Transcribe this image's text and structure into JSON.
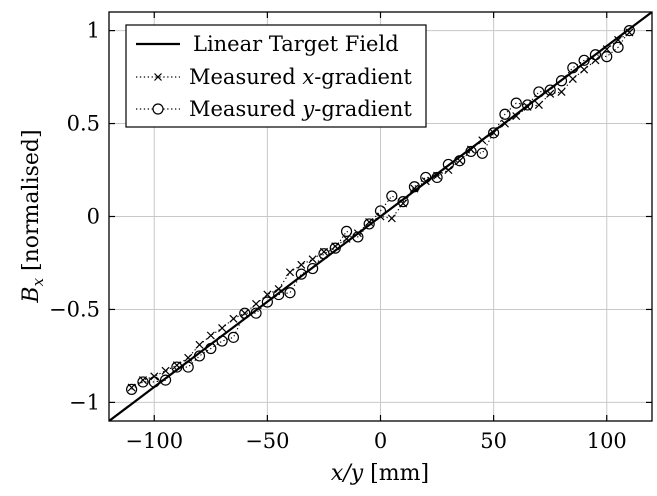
{
  "chart_data": {
    "type": "line",
    "xlabel": {
      "italic": "x/y",
      "plain": " [mm]"
    },
    "ylabel": {
      "italic": "B",
      "subscript": "x",
      "plain": " [normalised]"
    },
    "xlim": [
      -120,
      120
    ],
    "ylim": [
      -1.1,
      1.1
    ],
    "xticks": [
      -100,
      -50,
      0,
      50,
      100
    ],
    "xtick_labels": [
      "−100",
      "−50",
      "0",
      "50",
      "100"
    ],
    "yticks": [
      -1,
      -0.5,
      0,
      0.5,
      1
    ],
    "ytick_labels": [
      "−1",
      "−0.5",
      "0",
      "0.5",
      "1"
    ],
    "grid": true,
    "legend_position": "top-left",
    "series": [
      {
        "name": "Linear Target Field",
        "style": "solid",
        "marker": "none",
        "x": [
          -120,
          120
        ],
        "y": [
          -1.1,
          1.1
        ]
      },
      {
        "name_parts": {
          "before": "Measured ",
          "italic": "x",
          "after": "-gradient"
        },
        "style": "dotted",
        "marker": "x",
        "x": [
          -110,
          -105,
          -100,
          -95,
          -90,
          -85,
          -80,
          -75,
          -70,
          -65,
          -60,
          -55,
          -50,
          -45,
          -40,
          -35,
          -30,
          -25,
          -20,
          -15,
          -10,
          -5,
          0,
          5,
          10,
          15,
          20,
          25,
          30,
          35,
          40,
          45,
          50,
          55,
          60,
          65,
          70,
          75,
          80,
          85,
          90,
          95,
          100,
          105,
          110
        ],
        "y": [
          -0.92,
          -0.88,
          -0.86,
          -0.83,
          -0.8,
          -0.76,
          -0.69,
          -0.64,
          -0.6,
          -0.55,
          -0.52,
          -0.47,
          -0.42,
          -0.39,
          -0.3,
          -0.26,
          -0.23,
          -0.19,
          -0.16,
          -0.12,
          -0.09,
          -0.03,
          0.0,
          -0.01,
          0.07,
          0.15,
          0.19,
          0.22,
          0.25,
          0.3,
          0.36,
          0.41,
          0.45,
          0.5,
          0.54,
          0.59,
          0.6,
          0.66,
          0.67,
          0.74,
          0.79,
          0.84,
          0.9,
          0.95,
          0.99
        ]
      },
      {
        "name_parts": {
          "before": "Measured ",
          "italic": "y",
          "after": "-gradient"
        },
        "style": "dotted",
        "marker": "o",
        "x": [
          -110,
          -105,
          -100,
          -95,
          -90,
          -85,
          -80,
          -75,
          -70,
          -65,
          -60,
          -55,
          -50,
          -45,
          -40,
          -35,
          -30,
          -25,
          -20,
          -15,
          -10,
          -5,
          0,
          5,
          10,
          15,
          20,
          25,
          30,
          35,
          40,
          45,
          50,
          55,
          60,
          65,
          70,
          75,
          80,
          85,
          90,
          95,
          100,
          105,
          110
        ],
        "y": [
          -0.93,
          -0.89,
          -0.89,
          -0.88,
          -0.81,
          -0.81,
          -0.75,
          -0.71,
          -0.67,
          -0.65,
          -0.52,
          -0.52,
          -0.46,
          -0.42,
          -0.41,
          -0.31,
          -0.28,
          -0.2,
          -0.17,
          -0.08,
          -0.11,
          -0.04,
          0.03,
          0.11,
          0.08,
          0.16,
          0.21,
          0.21,
          0.28,
          0.3,
          0.35,
          0.34,
          0.45,
          0.55,
          0.61,
          0.6,
          0.67,
          0.68,
          0.73,
          0.8,
          0.84,
          0.87,
          0.86,
          0.91,
          1.0
        ]
      }
    ]
  }
}
